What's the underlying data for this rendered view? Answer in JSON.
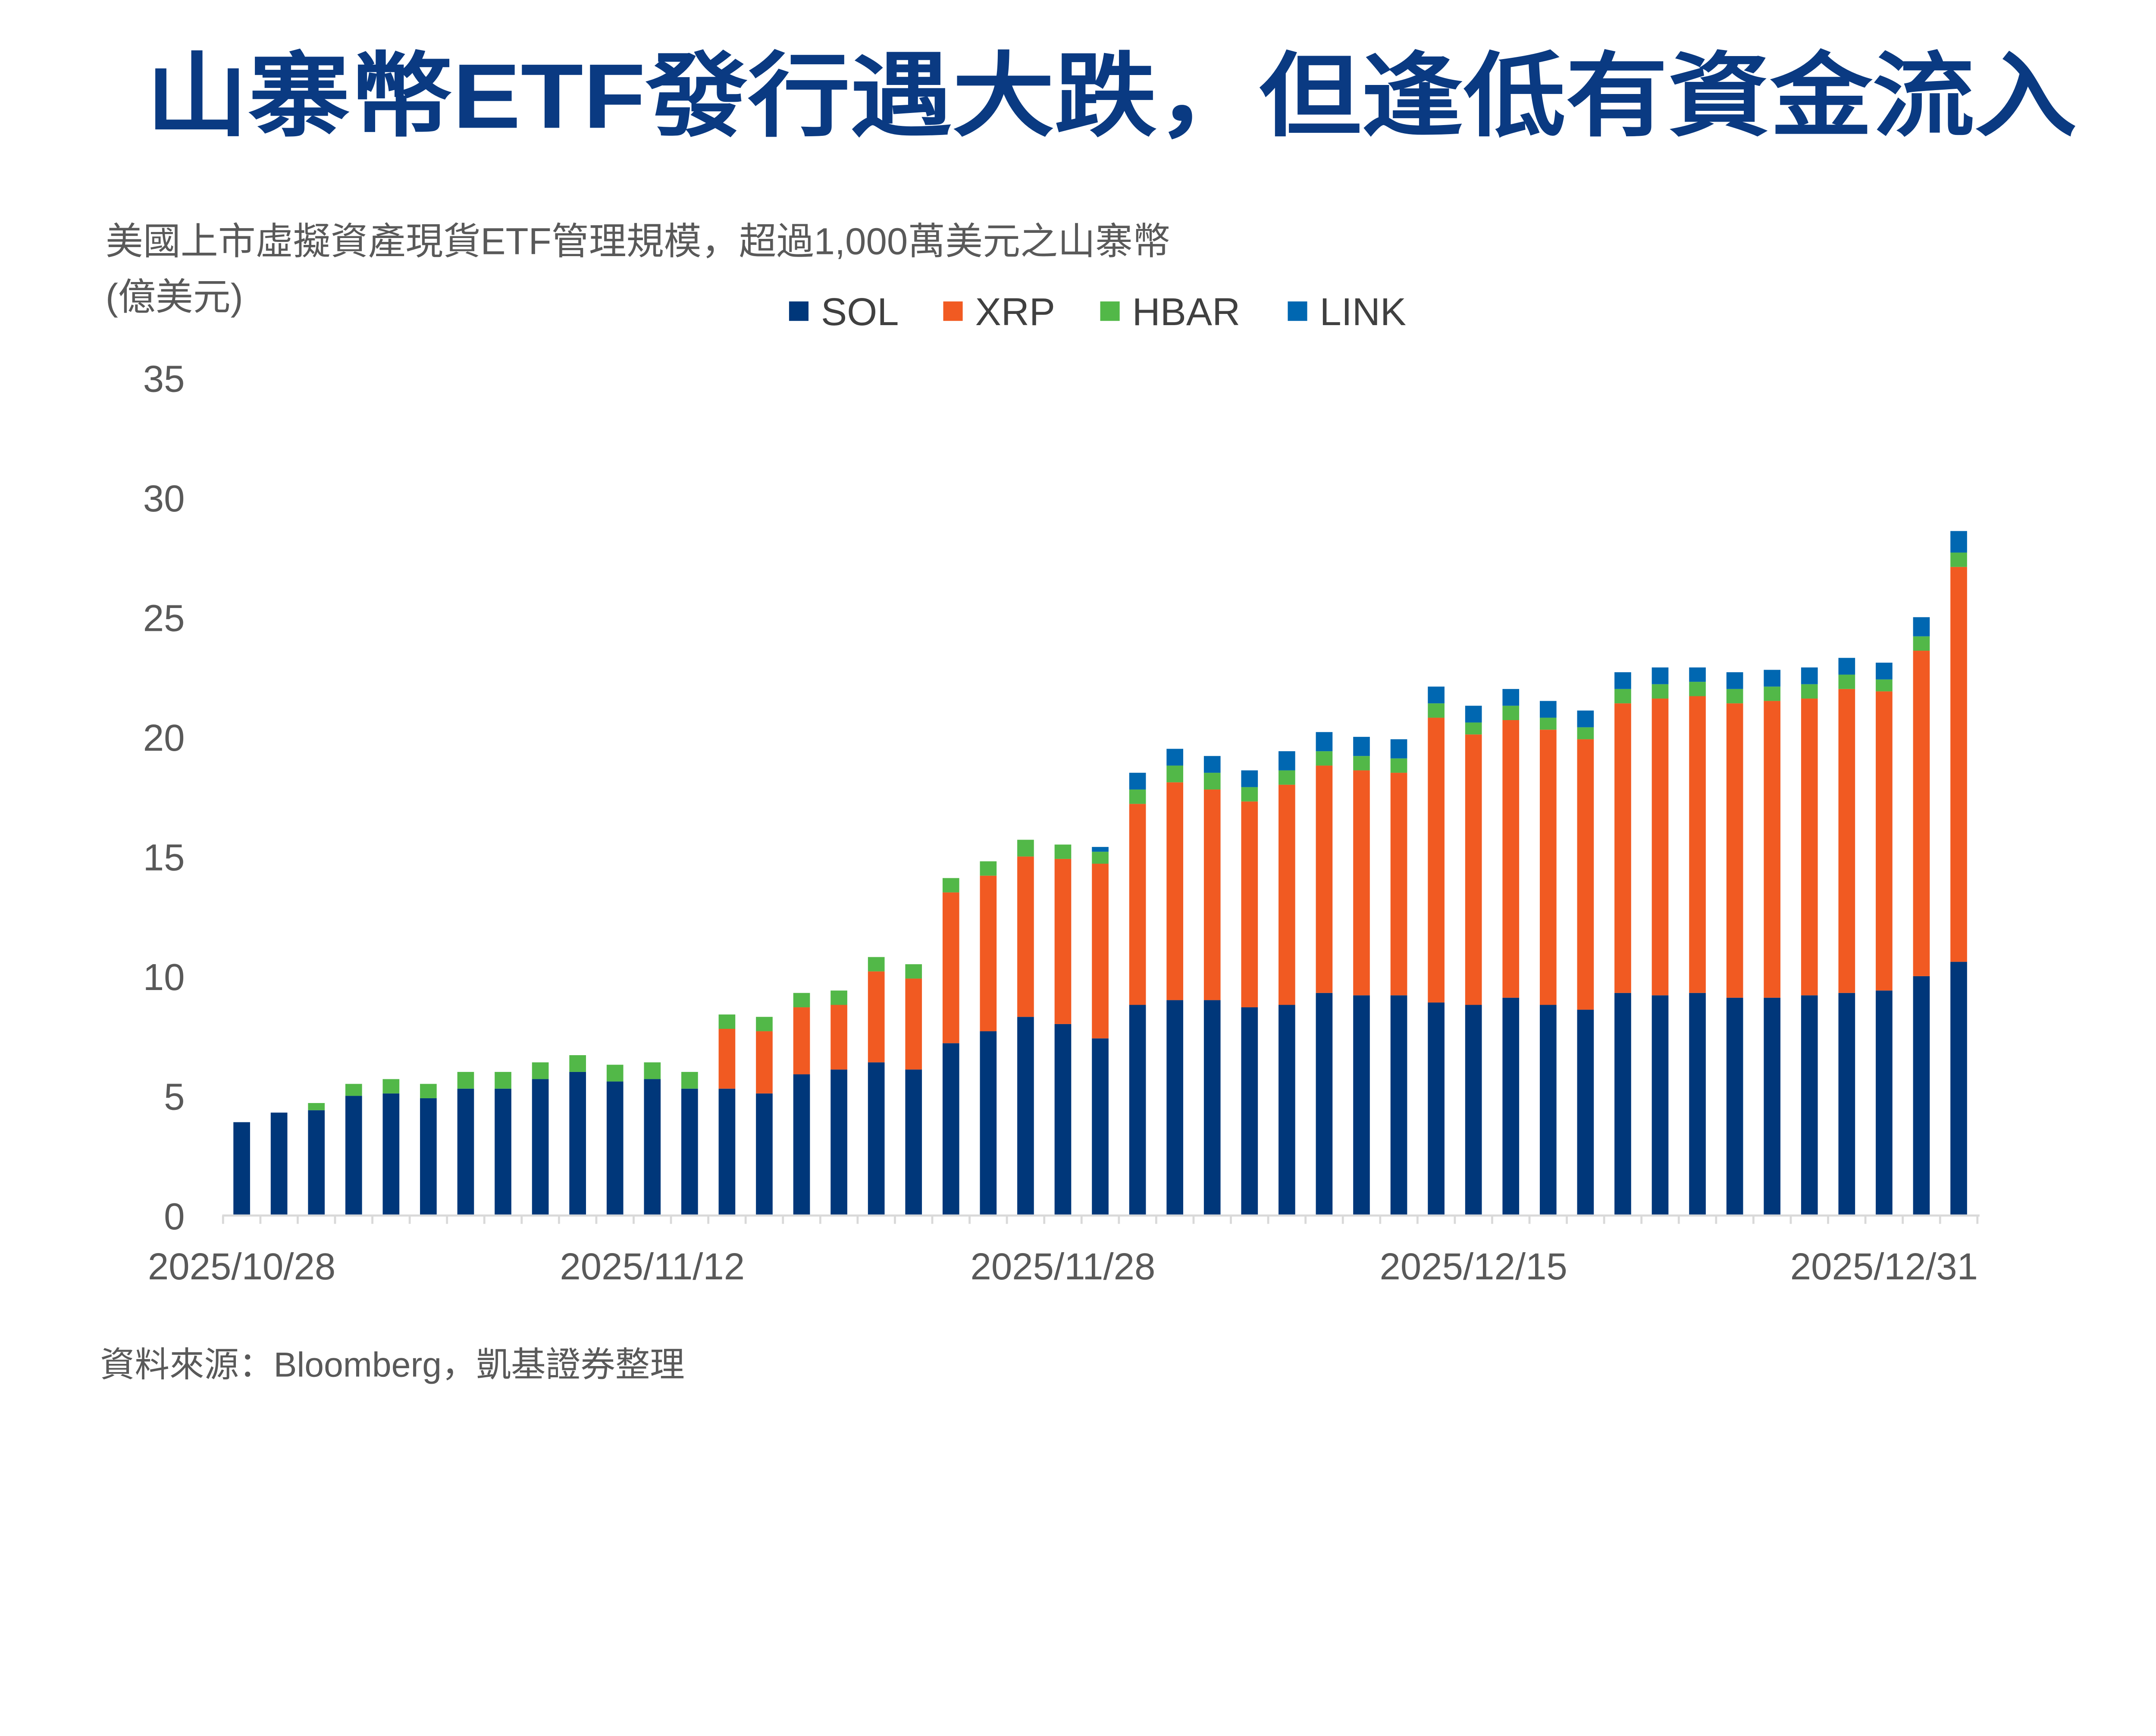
{
  "title": "山寨幣ETF發行遇大跌，但逢低有資金流入",
  "subtitle": "美國上市虛擬資產現貨ETF管理規模，超過1,000萬美元之山寨幣",
  "unit": "(億美元)",
  "source": "資料來源：Bloomberg，凱基證券整理",
  "colors": {
    "title": "#0A3A82",
    "SOL": "#00377A",
    "XRP": "#F15A22",
    "HBAR": "#52B848",
    "LINK": "#0067B1",
    "text": "#595959",
    "axis": "#D9D9D9"
  },
  "chart_data": {
    "type": "bar",
    "stacked": true,
    "title": "美國上市虛擬資產現貨ETF管理規模，超過1,000萬美元之山寨幣",
    "ylabel": "(億美元)",
    "ylim": [
      0,
      35
    ],
    "yticks": [
      "0",
      "5",
      "10",
      "15",
      "20",
      "25",
      "30",
      "35"
    ],
    "grid": false,
    "legend_position": "top",
    "x_tick_labels": [
      {
        "index": 0,
        "label": "2025/10/28"
      },
      {
        "index": 11,
        "label": "2025/11/12"
      },
      {
        "index": 22,
        "label": "2025/11/28"
      },
      {
        "index": 33,
        "label": "2025/12/15"
      },
      {
        "index": 44,
        "label": "2025/12/31"
      }
    ],
    "series": [
      {
        "name": "SOL",
        "values": [
          3.9,
          4.3,
          4.4,
          5.0,
          5.1,
          4.9,
          5.3,
          5.3,
          5.7,
          6.0,
          5.6,
          5.7,
          5.3,
          5.3,
          5.1,
          5.9,
          6.1,
          6.4,
          6.1,
          7.2,
          7.7,
          8.3,
          8.0,
          7.4,
          8.8,
          9.0,
          9.0,
          8.7,
          8.8,
          9.3,
          9.2,
          9.2,
          8.9,
          8.8,
          9.1,
          8.8,
          8.6,
          9.3,
          9.2,
          9.3,
          9.1,
          9.1,
          9.2,
          9.3,
          9.4,
          10.0,
          10.6
        ]
      },
      {
        "name": "XRP",
        "values": [
          0,
          0,
          0,
          0,
          0,
          0,
          0,
          0,
          0,
          0,
          0,
          0,
          0,
          2.5,
          2.6,
          2.8,
          2.7,
          3.8,
          3.8,
          6.3,
          6.5,
          6.7,
          6.9,
          7.3,
          8.4,
          9.1,
          8.8,
          8.6,
          9.2,
          9.5,
          9.4,
          9.3,
          11.9,
          11.3,
          11.6,
          11.5,
          11.3,
          12.1,
          12.4,
          12.4,
          12.3,
          12.4,
          12.4,
          12.7,
          12.5,
          13.6,
          16.5
        ]
      },
      {
        "name": "HBAR",
        "values": [
          0,
          0,
          0.3,
          0.5,
          0.6,
          0.6,
          0.7,
          0.7,
          0.7,
          0.7,
          0.7,
          0.7,
          0.7,
          0.6,
          0.6,
          0.6,
          0.6,
          0.6,
          0.6,
          0.6,
          0.6,
          0.7,
          0.6,
          0.5,
          0.6,
          0.7,
          0.7,
          0.6,
          0.6,
          0.6,
          0.6,
          0.6,
          0.6,
          0.5,
          0.6,
          0.5,
          0.5,
          0.6,
          0.6,
          0.6,
          0.6,
          0.6,
          0.6,
          0.6,
          0.5,
          0.6,
          0.6
        ]
      },
      {
        "name": "LINK",
        "values": [
          0,
          0,
          0,
          0,
          0,
          0,
          0,
          0,
          0,
          0,
          0,
          0,
          0,
          0,
          0,
          0,
          0,
          0,
          0,
          0,
          0,
          0,
          0,
          0.2,
          0.7,
          0.7,
          0.7,
          0.7,
          0.8,
          0.8,
          0.8,
          0.8,
          0.7,
          0.7,
          0.7,
          0.7,
          0.7,
          0.7,
          0.7,
          0.6,
          0.7,
          0.7,
          0.7,
          0.7,
          0.7,
          0.8,
          0.9
        ]
      }
    ]
  }
}
